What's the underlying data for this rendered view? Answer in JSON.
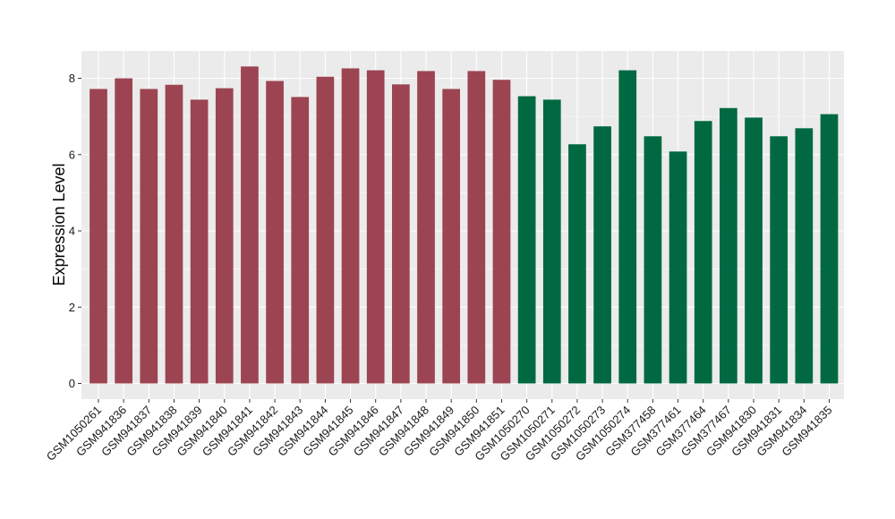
{
  "chart_data": {
    "type": "bar",
    "xlabel": "",
    "ylabel": "Expression Level",
    "ylim": [
      0,
      8.7
    ],
    "yticks": [
      0,
      2,
      4,
      6,
      8
    ],
    "grid": true,
    "panel_background": "#ebebeb",
    "grid_color": "#ffffff",
    "categories": [
      "GSM1050261",
      "GSM941836",
      "GSM941837",
      "GSM941838",
      "GSM941839",
      "GSM941840",
      "GSM941841",
      "GSM941842",
      "GSM941843",
      "GSM941844",
      "GSM941845",
      "GSM941846",
      "GSM941847",
      "GSM941848",
      "GSM941849",
      "GSM941850",
      "GSM941851",
      "GSM1050270",
      "GSM1050271",
      "GSM1050272",
      "GSM1050273",
      "GSM1050274",
      "GSM377458",
      "GSM377461",
      "GSM377464",
      "GSM377467",
      "GSM941830",
      "GSM941831",
      "GSM941834",
      "GSM941835"
    ],
    "values": [
      7.72,
      8.0,
      7.72,
      7.83,
      7.44,
      7.74,
      8.31,
      7.93,
      7.51,
      8.04,
      8.26,
      8.21,
      7.84,
      8.19,
      7.72,
      8.19,
      7.96,
      7.53,
      7.44,
      6.27,
      6.74,
      8.21,
      6.48,
      6.08,
      6.88,
      7.22,
      6.97,
      6.48,
      6.69,
      7.06
    ],
    "bar_colors": [
      "#9c4452",
      "#9c4452",
      "#9c4452",
      "#9c4452",
      "#9c4452",
      "#9c4452",
      "#9c4452",
      "#9c4452",
      "#9c4452",
      "#9c4452",
      "#9c4452",
      "#9c4452",
      "#9c4452",
      "#9c4452",
      "#9c4452",
      "#9c4452",
      "#9c4452",
      "#006941",
      "#006941",
      "#006941",
      "#006941",
      "#006941",
      "#006941",
      "#006941",
      "#006941",
      "#006941",
      "#006941",
      "#006941",
      "#006941",
      "#006941"
    ]
  }
}
